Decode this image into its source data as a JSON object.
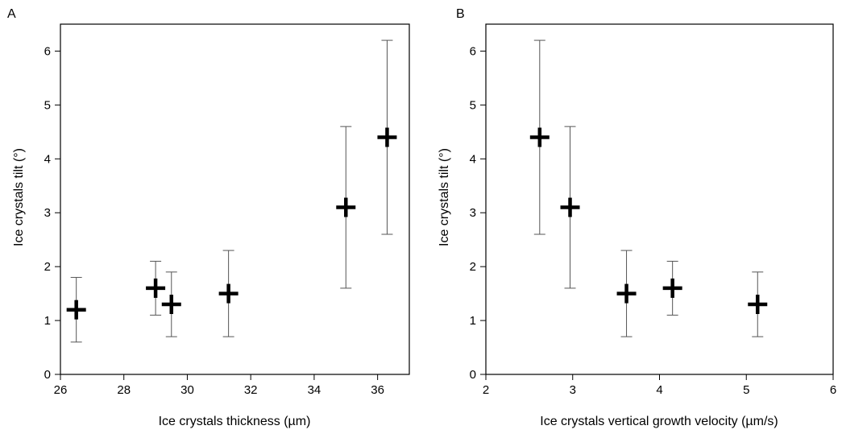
{
  "chart_data": [
    {
      "type": "scatter",
      "panel_label": "A",
      "title": "",
      "xlabel": "Ice crystals thickness (µm)",
      "ylabel": "Ice crystals tilt (°)",
      "xlim": [
        26,
        37
      ],
      "ylim": [
        0,
        6.5
      ],
      "xticks": [
        26,
        28,
        30,
        32,
        34,
        36
      ],
      "yticks": [
        0,
        1,
        2,
        3,
        4,
        5,
        6
      ],
      "grid": false,
      "marker": "plus",
      "color": "#000000",
      "points": [
        {
          "x": 26.5,
          "y": 1.2,
          "ylow": 0.6,
          "yhigh": 1.8
        },
        {
          "x": 29.0,
          "y": 1.6,
          "ylow": 1.1,
          "yhigh": 2.1
        },
        {
          "x": 29.5,
          "y": 1.3,
          "ylow": 0.7,
          "yhigh": 1.9
        },
        {
          "x": 31.3,
          "y": 1.5,
          "ylow": 0.7,
          "yhigh": 2.3
        },
        {
          "x": 35.0,
          "y": 3.1,
          "ylow": 1.6,
          "yhigh": 4.6
        },
        {
          "x": 36.3,
          "y": 4.4,
          "ylow": 2.6,
          "yhigh": 6.2
        }
      ]
    },
    {
      "type": "scatter",
      "panel_label": "B",
      "title": "",
      "xlabel": "Ice crystals vertical growth velocity (µm/s)",
      "ylabel": "Ice crystals tilt (°)",
      "xlim": [
        2,
        6
      ],
      "ylim": [
        0,
        6.5
      ],
      "xticks": [
        2,
        3,
        4,
        5,
        6
      ],
      "yticks": [
        0,
        1,
        2,
        3,
        4,
        5,
        6
      ],
      "grid": false,
      "marker": "plus",
      "color": "#000000",
      "points": [
        {
          "x": 2.62,
          "y": 4.4,
          "ylow": 2.6,
          "yhigh": 6.2
        },
        {
          "x": 2.97,
          "y": 3.1,
          "ylow": 1.6,
          "yhigh": 4.6
        },
        {
          "x": 3.62,
          "y": 1.5,
          "ylow": 0.7,
          "yhigh": 2.3
        },
        {
          "x": 4.15,
          "y": 1.6,
          "ylow": 1.1,
          "yhigh": 2.1
        },
        {
          "x": 5.13,
          "y": 1.3,
          "ylow": 0.7,
          "yhigh": 1.9
        }
      ]
    }
  ]
}
